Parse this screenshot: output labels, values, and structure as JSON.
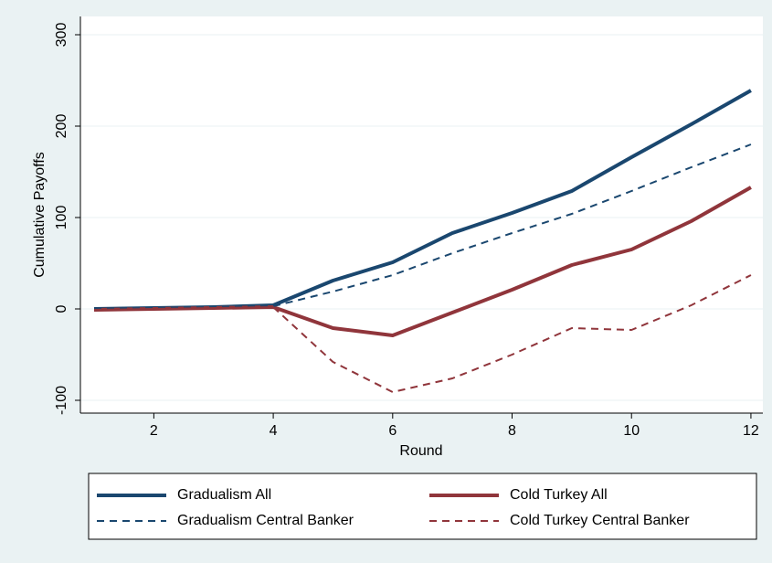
{
  "chart_data": {
    "type": "line",
    "x": [
      1,
      2,
      3,
      4,
      5,
      6,
      7,
      8,
      9,
      10,
      11,
      12
    ],
    "xlabel": "Round",
    "ylabel": "Cumulative Payoffs",
    "xlim": [
      0.77,
      12.2
    ],
    "ylim": [
      -114,
      320
    ],
    "xticks": [
      2,
      4,
      6,
      8,
      10,
      12
    ],
    "yticks": [
      -100,
      0,
      100,
      200,
      300
    ],
    "grid": true,
    "series": [
      {
        "name": "Gradualism All",
        "color": "#1a476f",
        "dashed": false,
        "values": [
          0,
          1,
          2,
          4,
          31,
          51,
          83,
          105,
          129,
          166,
          202,
          239
        ]
      },
      {
        "name": "Cold Turkey All",
        "color": "#90353b",
        "dashed": false,
        "values": [
          -1,
          0,
          1,
          2,
          -21,
          -29,
          -4,
          21,
          48,
          65,
          96,
          133
        ]
      },
      {
        "name": "Gradualism Central Banker",
        "color": "#1a476f",
        "dashed": true,
        "values": [
          0,
          1,
          2,
          3,
          19,
          37,
          61,
          83,
          104,
          129,
          155,
          180
        ]
      },
      {
        "name": "Cold Turkey Central Banker",
        "color": "#90353b",
        "dashed": true,
        "values": [
          -1,
          0,
          1,
          2,
          -58,
          -91,
          -76,
          -50,
          -21,
          -23,
          4,
          37
        ]
      }
    ]
  }
}
